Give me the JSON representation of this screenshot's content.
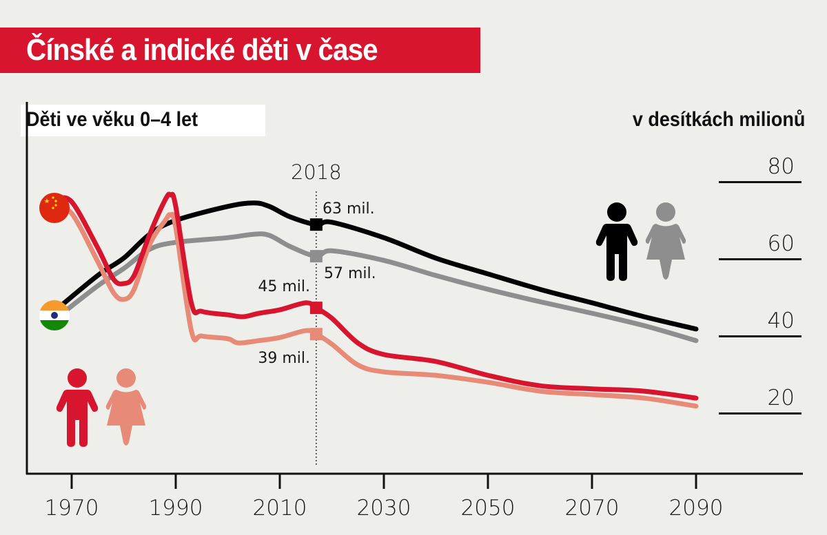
{
  "title": "Čínské a indické děti v čase",
  "subtitle": "Děti ve věku 0–4 let",
  "unit_label": "v desítkách milionů",
  "colors": {
    "red": "#d8152f",
    "salmon": "#e88a78",
    "black": "#000000",
    "gray": "#8e8e8e",
    "background": "#eeeeeb"
  },
  "chart_data": {
    "type": "line",
    "title": "Čínské a indické děti v čase",
    "xlabel": "",
    "ylabel": "v desítkách milionů",
    "xlim": [
      1961,
      2101
    ],
    "ylim": [
      -4,
      97
    ],
    "xticks": [
      1970,
      1990,
      2010,
      2030,
      2050,
      2070,
      2090
    ],
    "yticks": [
      20,
      40,
      60,
      80
    ],
    "ytick_labels": [
      "20",
      "40",
      "60",
      "80"
    ],
    "marker_year_label": "2018",
    "marker_year": 2017,
    "legend": [
      {
        "name": "China",
        "icon": "china-flag-icon"
      },
      {
        "name": "India",
        "icon": "india-flag-icon"
      }
    ],
    "series": [
      {
        "name": "India boys",
        "color": "#000000",
        "x": [
          1967,
          1975,
          1980,
          1985,
          1990,
          2000,
          2005,
          2008,
          2012,
          2017,
          2020,
          2030,
          2040,
          2050,
          2060,
          2070,
          2080,
          2090
        ],
        "values": [
          46.8,
          55.7,
          60.2,
          66.4,
          70,
          73.6,
          74.5,
          73.6,
          70.9,
          68.9,
          69.5,
          65.5,
          60.2,
          56.1,
          52.1,
          48.6,
          45,
          41.8
        ],
        "label": "63 mil."
      },
      {
        "name": "India girls",
        "color": "#8e8e8e",
        "x": [
          1967,
          1975,
          1980,
          1985,
          1990,
          2000,
          2005,
          2008,
          2012,
          2017,
          2020,
          2030,
          2040,
          2050,
          2060,
          2070,
          2080,
          2090
        ],
        "values": [
          44.6,
          53,
          57.5,
          62.5,
          64.3,
          65.5,
          66.4,
          66.1,
          63.2,
          60.7,
          62.1,
          59.6,
          55.7,
          52.1,
          48.9,
          45.9,
          42.7,
          38.8
        ],
        "label": "57 mil."
      },
      {
        "name": "China boys",
        "color": "#d8152f",
        "x": [
          1967,
          1970,
          1975,
          1978,
          1980,
          1982,
          1985,
          1988,
          1989,
          1990,
          1993,
          1995,
          2000,
          2003,
          2006,
          2010,
          2015,
          2017,
          2020,
          2025,
          2030,
          2040,
          2050,
          2060,
          2070,
          2080,
          2090
        ],
        "values": [
          75.4,
          74.8,
          62.9,
          54.8,
          53.6,
          55.7,
          66.4,
          75.4,
          76.6,
          73.6,
          48.6,
          46.4,
          45.5,
          45,
          45.9,
          46.8,
          48.6,
          47.3,
          44.6,
          38.2,
          35.2,
          33.4,
          29.8,
          27.1,
          26.3,
          25.7,
          23.9
        ],
        "label": "45 mil."
      },
      {
        "name": "China girls",
        "color": "#e88a78",
        "x": [
          1967,
          1970,
          1975,
          1978,
          1980,
          1982,
          1985,
          1988,
          1989,
          1990,
          1993,
          1995,
          2000,
          2002,
          2006,
          2010,
          2015,
          2017,
          2020,
          2025,
          2030,
          2040,
          2050,
          2060,
          2070,
          2080,
          2090
        ],
        "values": [
          72.7,
          71.8,
          59.3,
          51.3,
          49.5,
          52.1,
          63.8,
          70,
          71.4,
          68.2,
          41.4,
          40,
          39.3,
          38.2,
          38.8,
          39.6,
          41.4,
          40.5,
          37.9,
          32.5,
          30.7,
          29.8,
          28,
          25.7,
          24.8,
          23.9,
          21.8
        ],
        "label": "39 mil."
      }
    ]
  }
}
